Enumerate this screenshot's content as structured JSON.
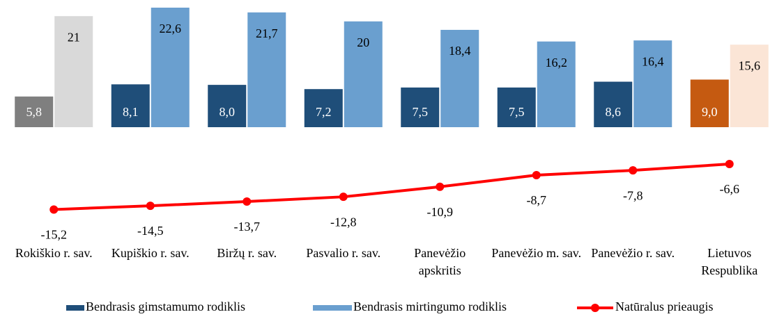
{
  "chart_data": {
    "type": "bar",
    "categories": [
      "Rokiškio r. sav.",
      "Kupiškio r. sav.",
      "Biržų r. sav.",
      "Pasvalio r. sav.",
      "Panevėžio apskritis",
      "Panevėžio m. sav.",
      "Panevėžio r. sav.",
      "Lietuvos Respublika"
    ],
    "series": [
      {
        "name": "Bendrasis gimstamumo rodiklis",
        "color": "#1f4e79",
        "colors": [
          "#7f7f7f",
          "#1f4e79",
          "#1f4e79",
          "#1f4e79",
          "#1f4e79",
          "#1f4e79",
          "#1f4e79",
          "#c55a11"
        ],
        "values": [
          5.8,
          8.1,
          8.0,
          7.2,
          7.5,
          7.5,
          8.6,
          9.0
        ],
        "value_labels": [
          "5,8",
          "8,1",
          "8,0",
          "7,2",
          "7,5",
          "7,5",
          "8,6",
          "9,0"
        ]
      },
      {
        "name": "Bendrasis mirtingumo rodiklis",
        "color": "#6a9fcf",
        "colors": [
          "#d9d9d9",
          "#6a9fcf",
          "#6a9fcf",
          "#6a9fcf",
          "#6a9fcf",
          "#6a9fcf",
          "#6a9fcf",
          "#fbe5d6"
        ],
        "values": [
          21,
          22.6,
          21.7,
          20,
          18.4,
          16.2,
          16.4,
          15.6
        ],
        "value_labels": [
          "21",
          "22,6",
          "21,7",
          "20",
          "18,4",
          "16,2",
          "16,4",
          "15,6"
        ]
      },
      {
        "name": "Natūralus prieaugis",
        "type": "line",
        "color": "#ff0000",
        "values": [
          -15.2,
          -14.5,
          -13.7,
          -12.8,
          -10.9,
          -8.7,
          -7.8,
          -6.6
        ],
        "value_labels": [
          "-15,2",
          "-14,5",
          "-13,7",
          "-12,8",
          "-10,9",
          "-8,7",
          "-7,8",
          "-6,6"
        ]
      }
    ]
  }
}
